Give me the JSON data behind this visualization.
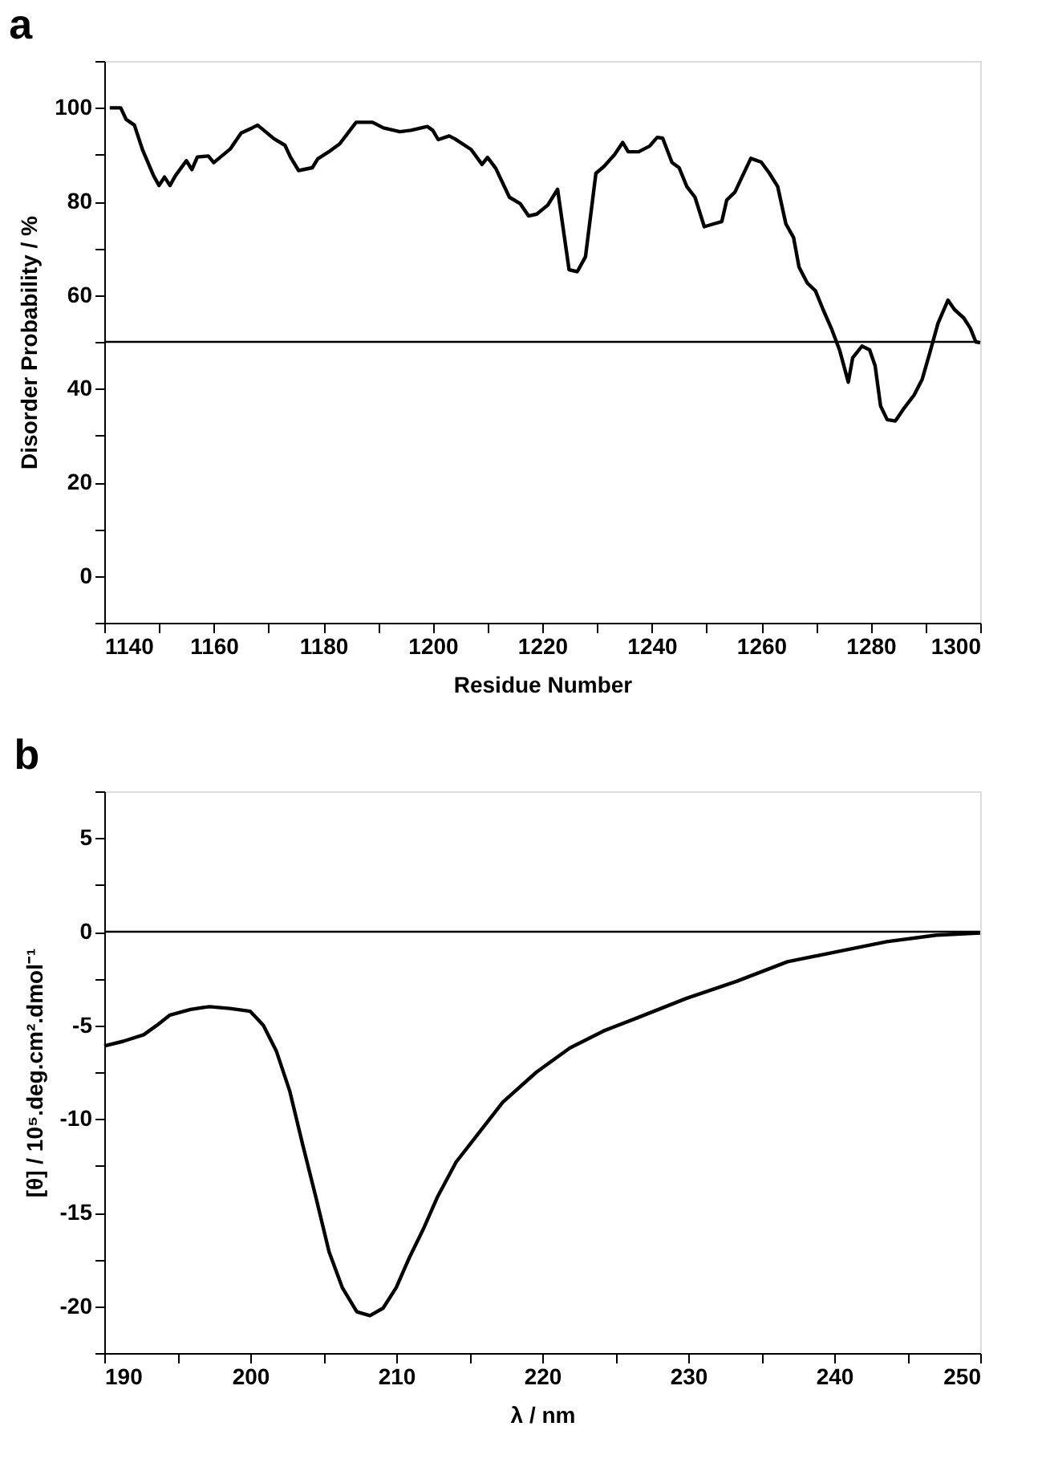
{
  "chart_data": [
    {
      "type": "line",
      "title": "a",
      "xlabel": "Residue Number",
      "ylabel": "Disorder Probability / %",
      "grid": false,
      "marker": "none",
      "line_style": "solid",
      "xlim": [
        1140,
        1300
      ],
      "xticks": [
        1140,
        {
          "value": 1150,
          "label": null
        },
        1160,
        {
          "value": 1170,
          "label": null
        },
        1180,
        {
          "value": 1190,
          "label": null
        },
        1200,
        {
          "value": 1210,
          "label": null
        },
        1220,
        {
          "value": 1230,
          "label": null
        },
        1240,
        {
          "value": 1250,
          "label": null
        },
        1260,
        {
          "value": 1270,
          "label": null
        },
        1280,
        {
          "value": 1290,
          "label": null
        },
        1300
      ],
      "ylim": [
        -10,
        110
      ],
      "yticks": [
        {
          "value": -10,
          "label": null
        },
        0,
        {
          "value": 10,
          "label": null
        },
        20,
        {
          "value": 30,
          "label": null
        },
        40,
        {
          "value": 50,
          "label": null
        },
        60,
        {
          "value": 70,
          "label": null
        },
        80,
        {
          "value": 90,
          "label": null
        },
        100,
        {
          "value": 110,
          "label": null
        }
      ],
      "ref_lines": [
        {
          "axis": "y",
          "value": 50,
          "color": "#000000"
        }
      ],
      "series": [
        {
          "color": "#000000",
          "x": [
            1141,
            1143,
            1144,
            1145.5,
            1147,
            1149,
            1150,
            1151,
            1152,
            1153,
            1155,
            1156,
            1157,
            1159,
            1160,
            1163,
            1165,
            1167,
            1168,
            1171,
            1173,
            1174,
            1175.5,
            1178,
            1179,
            1181,
            1183,
            1186,
            1189,
            1191,
            1194,
            1196,
            1199,
            1200,
            1201,
            1203,
            1204,
            1207,
            1209,
            1210,
            1211.5,
            1214,
            1216,
            1217.5,
            1219,
            1221,
            1222.8,
            1224.9,
            1226.4,
            1227.9,
            1229.8,
            1231.3,
            1233.2,
            1234.7,
            1235.7,
            1237.6,
            1239.6,
            1241,
            1242,
            1243.7,
            1245,
            1246.4,
            1247.9,
            1249.6,
            1251.3,
            1252.8,
            1253.7,
            1255.2,
            1256.6,
            1258.1,
            1260,
            1261.5,
            1263,
            1264.5,
            1265.9,
            1266.9,
            1268.4,
            1269.9,
            1271.3,
            1272.8,
            1274.3,
            1275.9,
            1276.7,
            1278.4,
            1279.8,
            1280.8,
            1281.8,
            1283,
            1284.5,
            1286,
            1287.9,
            1289.4,
            1290.8,
            1292.3,
            1294.1,
            1295.3,
            1297,
            1298.2,
            1299.2,
            1300
          ],
          "values": [
            100,
            100,
            97.5,
            96.3,
            91,
            85.5,
            83.4,
            85.2,
            83.4,
            85.5,
            88.7,
            86.8,
            89.5,
            89.7,
            88.3,
            91.2,
            94.6,
            95.7,
            96.3,
            93.4,
            92,
            89.5,
            86.6,
            87.2,
            89.1,
            90.6,
            92.3,
            96.9,
            96.9,
            95.7,
            94.9,
            95.2,
            96,
            95.2,
            93.2,
            94,
            93.4,
            91.1,
            87.9,
            89.4,
            87.1,
            80.9,
            79.5,
            76.9,
            77.3,
            79.2,
            82.6,
            65.4,
            65,
            68.2,
            86,
            87.5,
            90,
            92.6,
            90.6,
            90.6,
            91.8,
            93.7,
            93.5,
            88.3,
            87.2,
            83.2,
            80.9,
            74.6,
            75.2,
            75.7,
            80.3,
            82,
            85.5,
            89.2,
            88.4,
            86,
            83.2,
            75.2,
            72.3,
            66,
            62.6,
            60.9,
            56.9,
            52.9,
            48.3,
            41.4,
            46.6,
            49.1,
            48.3,
            44.9,
            36.3,
            33.4,
            33.1,
            35.7,
            38.6,
            42,
            47.7,
            54,
            58.9,
            56.9,
            55.1,
            52.9,
            50,
            49.8
          ]
        }
      ]
    },
    {
      "type": "line",
      "title": "b",
      "xlabel": "λ / nm",
      "ylabel": "[θ] / 10⁵.deg.cm².dmol⁻¹",
      "grid": false,
      "marker": "none",
      "line_style": "solid",
      "xlim": [
        190,
        250
      ],
      "xticks": [
        190,
        {
          "value": 195,
          "label": null
        },
        200,
        {
          "value": 205,
          "label": null
        },
        210,
        {
          "value": 215,
          "label": null
        },
        220,
        {
          "value": 225,
          "label": null
        },
        230,
        {
          "value": 235,
          "label": null
        },
        240,
        {
          "value": 245,
          "label": null
        },
        250
      ],
      "ylim": [
        -22.5,
        7.5
      ],
      "yticks": [
        {
          "value": -22.5,
          "label": null
        },
        -20,
        {
          "value": -17.5,
          "label": null
        },
        -15,
        {
          "value": -12.5,
          "label": null
        },
        -10,
        {
          "value": -7.5,
          "label": null
        },
        -5,
        {
          "value": -2.5,
          "label": null
        },
        0,
        {
          "value": 2.5,
          "label": null
        },
        5,
        {
          "value": 7.5,
          "label": null
        }
      ],
      "ref_lines": [
        {
          "axis": "y",
          "value": 0,
          "color": "#000000"
        }
      ],
      "series": [
        {
          "color": "#000000",
          "x": [
            190,
            191.3,
            192.7,
            193.6,
            194.5,
            195.9,
            197.2,
            198.6,
            200,
            200.9,
            201.8,
            202.7,
            203.6,
            204.5,
            205.4,
            206.3,
            207.3,
            208.2,
            209.1,
            210,
            210.9,
            211.9,
            212.8,
            214.1,
            215.5,
            217.3,
            219.6,
            221.9,
            224.2,
            226.5,
            229.9,
            233.3,
            236.8,
            240.2,
            243.6,
            247,
            250
          ],
          "values": [
            -6.1,
            -5.85,
            -5.5,
            -5,
            -4.45,
            -4.15,
            -4.0,
            -4.1,
            -4.25,
            -5,
            -6.4,
            -8.5,
            -11.4,
            -14.2,
            -17.1,
            -19,
            -20.3,
            -20.5,
            -20.1,
            -19,
            -17.4,
            -15.8,
            -14.2,
            -12.3,
            -10.9,
            -9.1,
            -7.5,
            -6.2,
            -5.3,
            -4.6,
            -3.55,
            -2.65,
            -1.6,
            -1.07,
            -0.53,
            -0.18,
            -0.07
          ]
        }
      ]
    }
  ]
}
